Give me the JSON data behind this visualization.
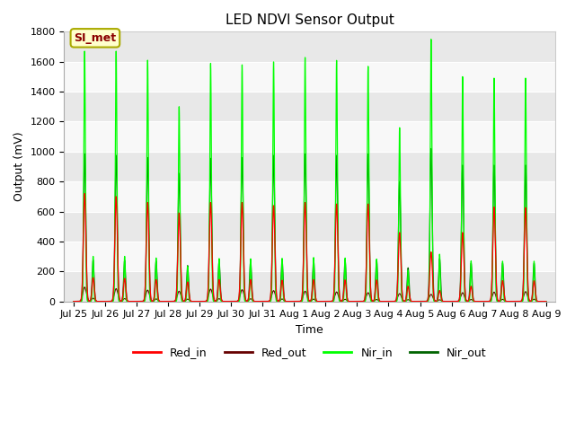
{
  "title": "LED NDVI Sensor Output",
  "xlabel": "Time",
  "ylabel": "Output (mV)",
  "ylim": [
    0,
    1800
  ],
  "background_color": "#ffffff",
  "plot_bg_color": "#f0f0f0",
  "grid_color": "#ffffff",
  "band_colors": [
    "#e8e8e8",
    "#f8f8f8"
  ],
  "colors": {
    "Red_in": "#ff0000",
    "Red_out": "#660000",
    "Nir_in": "#00ff00",
    "Nir_out": "#006400"
  },
  "annotation_text": "SI_met",
  "annotation_bg": "#ffffcc",
  "annotation_border": "#aaaa00",
  "day_labels": [
    "Jul 25",
    "Jul 26",
    "Jul 27",
    "Jul 28",
    "Jul 29",
    "Jul 30",
    "Jul 31",
    "Aug 1",
    "Aug 2",
    "Aug 3",
    "Aug 4",
    "Aug 5",
    "Aug 6",
    "Aug 7",
    "Aug 8",
    "Aug 9"
  ],
  "peak_data": {
    "nir_in_heights": [
      1670,
      1670,
      1610,
      1300,
      1590,
      1580,
      1600,
      1630,
      1610,
      1570,
      1160,
      1750,
      1500,
      1490,
      1490
    ],
    "nir_out_heights": [
      985,
      975,
      960,
      855,
      955,
      960,
      975,
      985,
      975,
      985,
      800,
      1020,
      910,
      910,
      910
    ],
    "red_in_heights": [
      720,
      700,
      660,
      590,
      660,
      660,
      640,
      660,
      650,
      650,
      460,
      330,
      460,
      630,
      625
    ],
    "red_out_heights": [
      95,
      85,
      75,
      68,
      82,
      78,
      72,
      68,
      63,
      58,
      52,
      47,
      58,
      62,
      65
    ]
  }
}
